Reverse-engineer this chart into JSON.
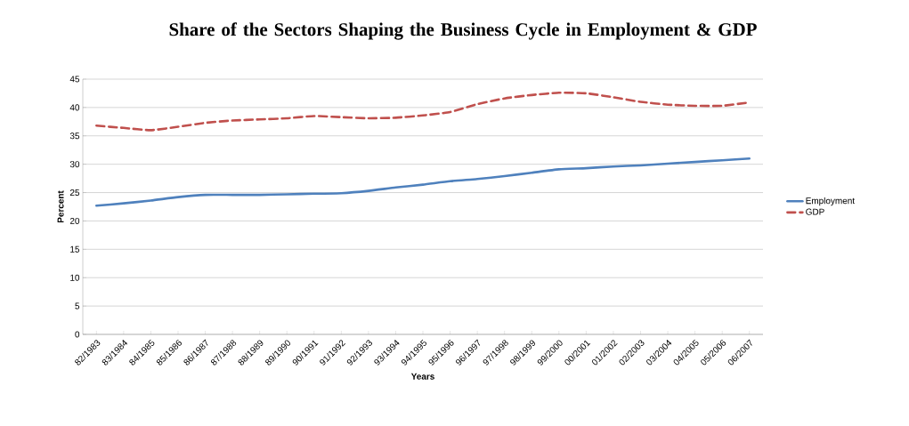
{
  "chart_data": {
    "type": "line",
    "title": "Share of the Sectors Shaping the Business Cycle in Employment & GDP",
    "xlabel": "Years",
    "ylabel": "Percent",
    "categories": [
      "82/1983",
      "83/1984",
      "84/1985",
      "85/1986",
      "86/1987",
      "87/1988",
      "88/1989",
      "89/1990",
      "90/1991",
      "91/1992",
      "92/1993",
      "93/1994",
      "94/1995",
      "95/1996",
      "96/1997",
      "97/1998",
      "98/1999",
      "99/2000",
      "00/2001",
      "01/2002",
      "02/2003",
      "03/2004",
      "04/2005",
      "05/2006",
      "06/2007"
    ],
    "series": [
      {
        "name": "Employment",
        "color": "#4f81bd",
        "line_style": "solid",
        "values": [
          22.7,
          23.1,
          23.6,
          24.2,
          24.6,
          24.6,
          24.6,
          24.7,
          24.8,
          24.9,
          25.3,
          25.9,
          26.4,
          27.0,
          27.4,
          27.9,
          28.5,
          29.1,
          29.3,
          29.6,
          29.8,
          30.1,
          30.4,
          30.7,
          31.0
        ]
      },
      {
        "name": "GDP",
        "color": "#c0504d",
        "line_style": "dashed",
        "values": [
          36.8,
          36.4,
          36.0,
          36.6,
          37.3,
          37.7,
          37.9,
          38.1,
          38.5,
          38.3,
          38.1,
          38.2,
          38.6,
          39.2,
          40.6,
          41.6,
          42.2,
          42.6,
          42.5,
          41.8,
          41.0,
          40.5,
          40.3,
          40.3,
          40.9
        ]
      }
    ],
    "ylim": [
      0,
      45
    ],
    "yticks": [
      0,
      5,
      10,
      15,
      20,
      25,
      30,
      35,
      40,
      45
    ],
    "grid": "y",
    "legend": "right",
    "marker": "none"
  }
}
